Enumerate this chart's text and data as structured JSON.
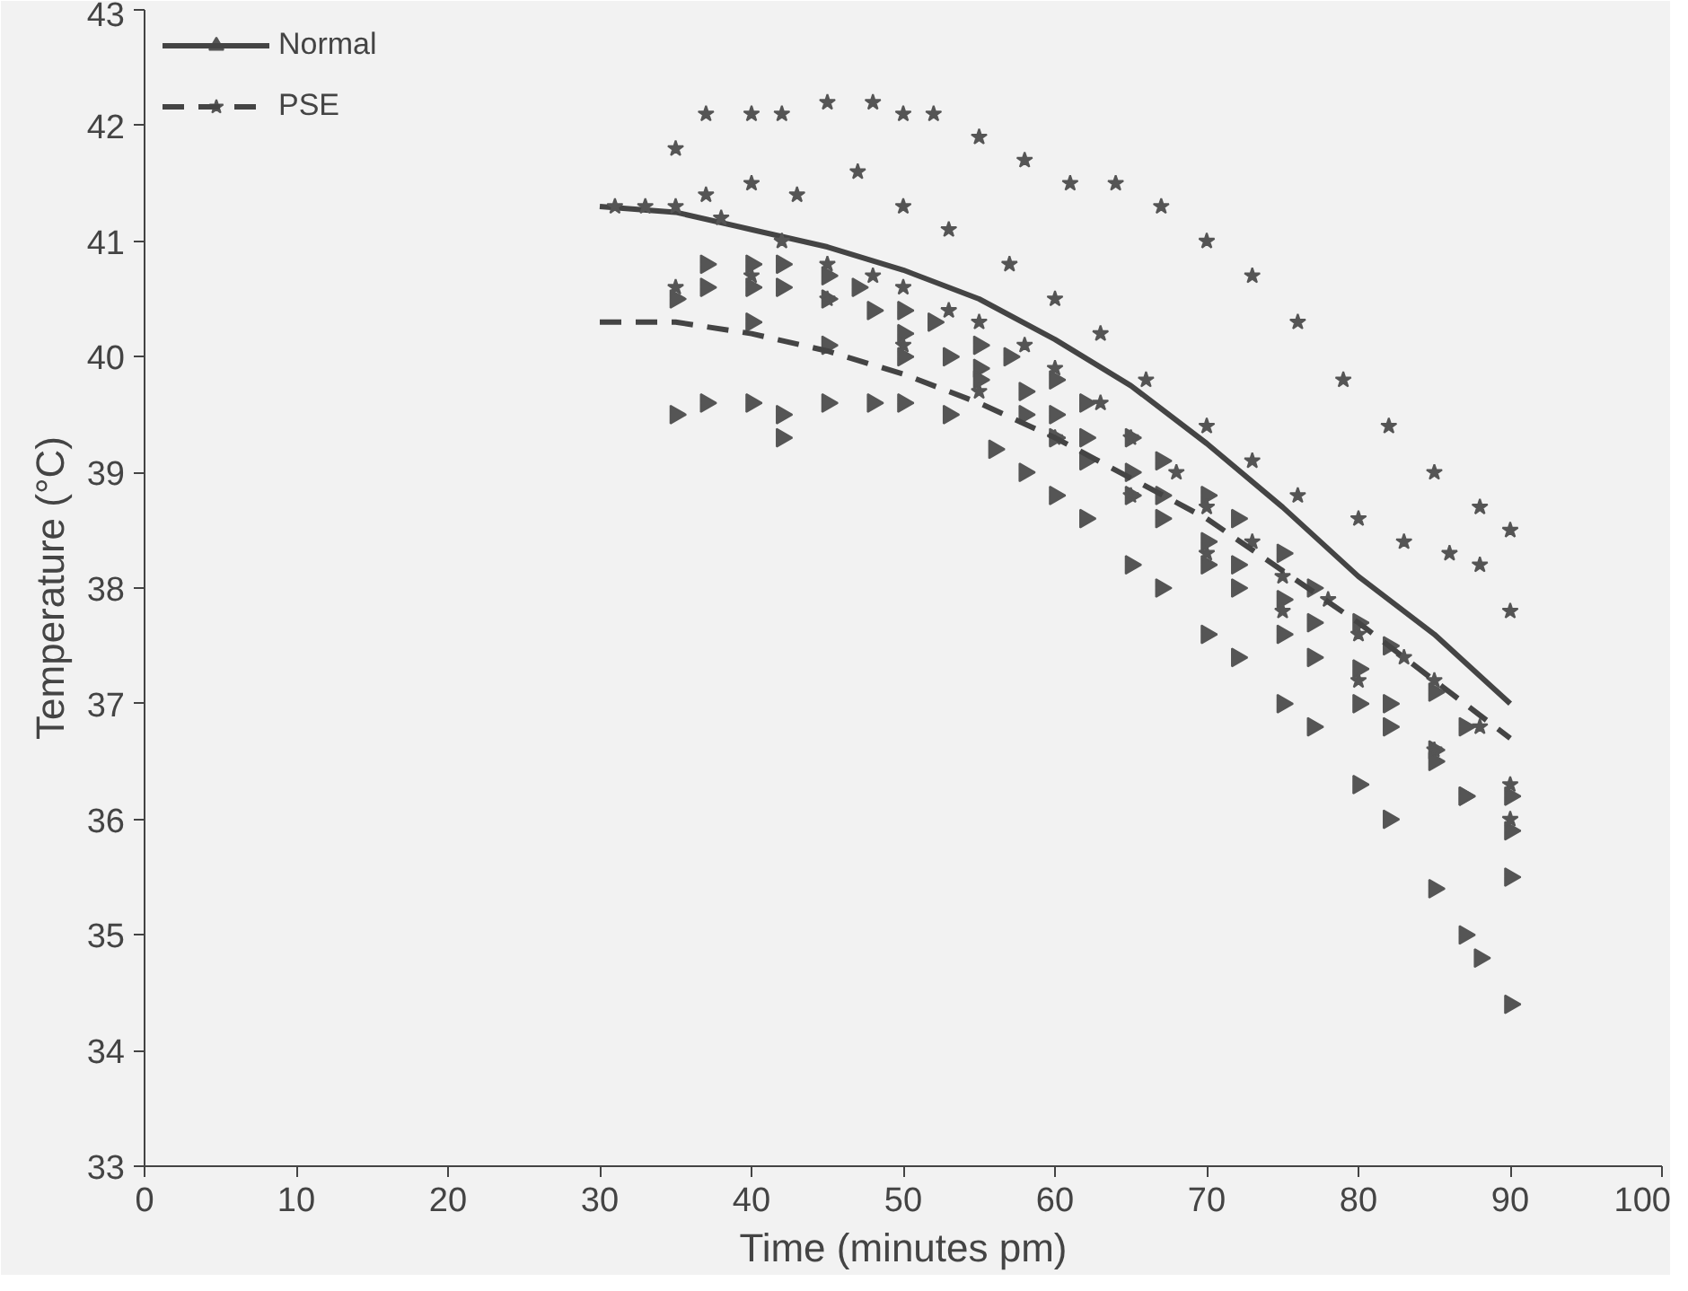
{
  "chart_data": {
    "type": "scatter",
    "xlabel": "Time (minutes pm)",
    "ylabel": "Temperature (°C)",
    "xlim": [
      0,
      100
    ],
    "ylim": [
      33,
      43
    ],
    "xticks": [
      0,
      10,
      20,
      30,
      40,
      50,
      60,
      70,
      80,
      90,
      100
    ],
    "yticks": [
      33,
      34,
      35,
      36,
      37,
      38,
      39,
      40,
      41,
      42,
      43
    ],
    "grid": false,
    "legend": "top left",
    "series": [
      {
        "name": "Normal",
        "marker": "triangle",
        "color": "#555555",
        "x": [
          35,
          37,
          40,
          42,
          45,
          48,
          50,
          53,
          56,
          58,
          60,
          62,
          65,
          67,
          70,
          72,
          75,
          77,
          80,
          82,
          85,
          87,
          88,
          90,
          35,
          37,
          40,
          42,
          45,
          48,
          50,
          53,
          55,
          58,
          60,
          62,
          65,
          67,
          70,
          72,
          75,
          77,
          80,
          82,
          85,
          87,
          90,
          37,
          40,
          42,
          45,
          47,
          50,
          52,
          55,
          57,
          60,
          62,
          65,
          67,
          70,
          72,
          75,
          77,
          80,
          82,
          85,
          87,
          90,
          40,
          45,
          50,
          55,
          58,
          60,
          62,
          65,
          67,
          70,
          72,
          75,
          77,
          80,
          82,
          85,
          87,
          90,
          42
        ],
        "values": [
          39.5,
          39.6,
          39.6,
          39.5,
          39.6,
          39.6,
          39.6,
          39.5,
          39.2,
          39.0,
          38.8,
          38.6,
          38.2,
          38.0,
          37.6,
          37.4,
          37.0,
          36.8,
          36.3,
          36.0,
          35.4,
          35.0,
          34.8,
          34.4,
          40.5,
          40.6,
          40.6,
          40.6,
          40.5,
          40.4,
          40.2,
          40.0,
          39.9,
          39.7,
          39.5,
          39.3,
          39.0,
          38.8,
          38.4,
          38.2,
          37.9,
          37.7,
          37.3,
          37.0,
          36.6,
          36.2,
          35.5,
          40.8,
          40.8,
          40.8,
          40.7,
          40.6,
          40.4,
          40.3,
          40.1,
          40.0,
          39.8,
          39.6,
          39.3,
          39.1,
          38.8,
          38.6,
          38.3,
          38.0,
          37.7,
          37.5,
          37.1,
          36.8,
          36.2,
          40.3,
          40.1,
          40.0,
          39.8,
          39.5,
          39.3,
          39.1,
          38.8,
          38.6,
          38.2,
          38.0,
          37.6,
          37.4,
          37.0,
          36.8,
          36.5,
          36.2,
          35.9,
          39.3
        ]
      },
      {
        "type": "line",
        "line_style": "solid",
        "color": "#444444",
        "x": [
          30,
          35,
          40,
          45,
          50,
          55,
          60,
          65,
          70,
          75,
          80,
          85,
          90
        ],
        "values": [
          41.3,
          41.25,
          41.1,
          40.95,
          40.75,
          40.5,
          40.15,
          39.75,
          39.25,
          38.7,
          38.1,
          37.6,
          37.0
        ]
      },
      {
        "name": "PSE",
        "marker": "star",
        "color": "#555555",
        "x": [
          35,
          37,
          40,
          42,
          45,
          48,
          50,
          52,
          55,
          58,
          61,
          64,
          67,
          70,
          73,
          76,
          79,
          82,
          85,
          88,
          90,
          37,
          40,
          43,
          47,
          50,
          53,
          57,
          60,
          63,
          66,
          70,
          73,
          76,
          80,
          83,
          86,
          88,
          90,
          31,
          33,
          35,
          38,
          42,
          45,
          48,
          50,
          53,
          55,
          58,
          60,
          63,
          65,
          68,
          70,
          73,
          75,
          78,
          80,
          83,
          85,
          88,
          90,
          35,
          40,
          45,
          50,
          55,
          60,
          65,
          70,
          75,
          80,
          85,
          90
        ],
        "values": [
          41.8,
          42.1,
          42.1,
          42.1,
          42.2,
          42.2,
          42.1,
          42.1,
          41.9,
          41.7,
          41.5,
          41.5,
          41.3,
          41.0,
          40.7,
          40.3,
          39.8,
          39.4,
          39.0,
          38.7,
          38.5,
          41.4,
          41.5,
          41.4,
          41.6,
          41.3,
          41.1,
          40.8,
          40.5,
          40.2,
          39.8,
          39.4,
          39.1,
          38.8,
          38.6,
          38.4,
          38.3,
          38.2,
          37.8,
          41.3,
          41.3,
          41.3,
          41.2,
          41.0,
          40.8,
          40.7,
          40.6,
          40.4,
          40.3,
          40.1,
          39.9,
          39.6,
          39.3,
          39.0,
          38.7,
          38.4,
          38.1,
          37.9,
          37.6,
          37.4,
          37.2,
          36.8,
          36.3,
          40.6,
          40.7,
          40.5,
          40.1,
          39.7,
          39.3,
          38.8,
          38.3,
          37.8,
          37.2,
          36.6,
          36.0
        ]
      },
      {
        "type": "line",
        "line_style": "dashed",
        "color": "#444444",
        "x": [
          30,
          35,
          40,
          45,
          50,
          55,
          60,
          65,
          70,
          75,
          80,
          85,
          90
        ],
        "values": [
          40.3,
          40.3,
          40.2,
          40.05,
          39.85,
          39.6,
          39.3,
          38.95,
          38.6,
          38.15,
          37.7,
          37.2,
          36.7
        ]
      }
    ]
  }
}
